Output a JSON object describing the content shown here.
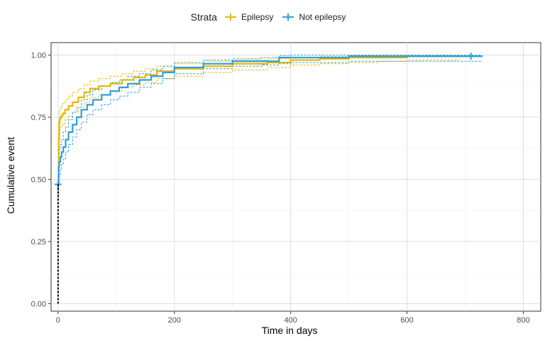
{
  "chart_data": {
    "type": "line",
    "step": true,
    "title": "",
    "xlabel": "Time in days",
    "ylabel": "Cumulative event",
    "xlim": [
      -12,
      830
    ],
    "ylim": [
      -0.03,
      1.05
    ],
    "x_ticks": [
      0,
      200,
      400,
      600,
      800
    ],
    "y_ticks": [
      0.0,
      0.25,
      0.5,
      0.75,
      1.0
    ],
    "x_tick_labels": [
      "0",
      "200",
      "400",
      "600",
      "800"
    ],
    "y_tick_labels": [
      "0.00",
      "0.25",
      "0.50",
      "0.75",
      "1.00"
    ],
    "grid": true,
    "legend": {
      "title": "Strata",
      "position": "top"
    },
    "series": [
      {
        "name": "Epilepsy",
        "color": "#E7B800",
        "x": [
          0,
          1,
          2,
          3,
          5,
          8,
          12,
          18,
          25,
          35,
          45,
          55,
          70,
          90,
          110,
          130,
          150,
          170,
          200,
          250,
          300,
          360,
          400,
          450,
          500,
          550,
          600,
          650,
          690
        ],
        "y": [
          0.48,
          0.66,
          0.73,
          0.745,
          0.755,
          0.765,
          0.78,
          0.795,
          0.81,
          0.83,
          0.85,
          0.865,
          0.875,
          0.885,
          0.9,
          0.91,
          0.92,
          0.935,
          0.945,
          0.955,
          0.965,
          0.97,
          0.98,
          0.985,
          0.99,
          0.99,
          0.995,
          0.995,
          0.995
        ],
        "ci_upper": [
          0.55,
          0.72,
          0.77,
          0.785,
          0.795,
          0.805,
          0.82,
          0.835,
          0.85,
          0.865,
          0.88,
          0.895,
          0.905,
          0.915,
          0.925,
          0.935,
          0.945,
          0.955,
          0.965,
          0.975,
          0.98,
          0.985,
          0.99,
          0.995,
          0.998,
          1.0,
          1.0,
          1.0,
          1.0
        ],
        "ci_lower": [
          0.42,
          0.6,
          0.69,
          0.705,
          0.715,
          0.725,
          0.74,
          0.755,
          0.77,
          0.79,
          0.81,
          0.83,
          0.84,
          0.855,
          0.87,
          0.88,
          0.89,
          0.905,
          0.915,
          0.93,
          0.94,
          0.95,
          0.96,
          0.965,
          0.97,
          0.975,
          0.98,
          0.98,
          0.98
        ],
        "censor_x": []
      },
      {
        "name": "Not epilepsy",
        "color": "#2E9FDF",
        "x": [
          0,
          1,
          2,
          4,
          6,
          9,
          13,
          18,
          25,
          32,
          40,
          50,
          60,
          75,
          90,
          105,
          120,
          140,
          160,
          180,
          200,
          250,
          300,
          350,
          380,
          400,
          450,
          500,
          550,
          600,
          650,
          700,
          730
        ],
        "y": [
          0.48,
          0.55,
          0.57,
          0.59,
          0.61,
          0.63,
          0.66,
          0.69,
          0.72,
          0.75,
          0.78,
          0.8,
          0.82,
          0.84,
          0.855,
          0.87,
          0.885,
          0.9,
          0.915,
          0.93,
          0.95,
          0.965,
          0.975,
          0.975,
          0.99,
          0.99,
          0.99,
          0.995,
          0.995,
          0.995,
          0.995,
          0.995,
          0.995
        ],
        "ci_upper": [
          0.52,
          0.6,
          0.62,
          0.64,
          0.66,
          0.69,
          0.71,
          0.74,
          0.77,
          0.79,
          0.82,
          0.84,
          0.86,
          0.875,
          0.89,
          0.9,
          0.915,
          0.925,
          0.94,
          0.955,
          0.97,
          0.98,
          0.985,
          0.99,
          0.998,
          1.0,
          1.0,
          1.0,
          1.0,
          1.0,
          1.0,
          1.0,
          1.0
        ],
        "ci_lower": [
          0.44,
          0.5,
          0.52,
          0.54,
          0.56,
          0.58,
          0.61,
          0.64,
          0.67,
          0.7,
          0.73,
          0.76,
          0.78,
          0.8,
          0.82,
          0.835,
          0.85,
          0.87,
          0.885,
          0.905,
          0.925,
          0.945,
          0.955,
          0.96,
          0.965,
          0.97,
          0.97,
          0.975,
          0.975,
          0.975,
          0.975,
          0.975,
          0.975
        ],
        "censor_x": [
          0,
          710
        ]
      }
    ]
  }
}
